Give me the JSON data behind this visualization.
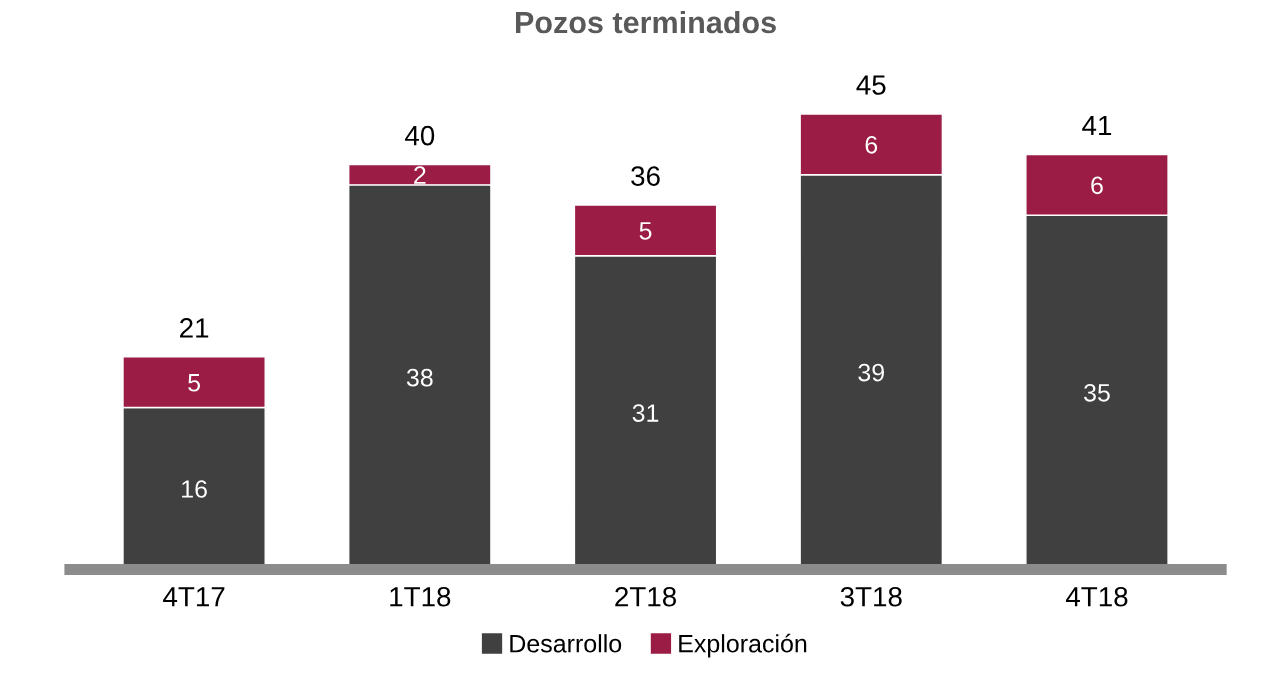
{
  "chart_data": {
    "type": "bar",
    "title": "Pozos terminados",
    "stacked": true,
    "data_labels": true,
    "legend": "bottom",
    "categories": [
      "4T17",
      "1T18",
      "2T18",
      "3T18",
      "4T18"
    ],
    "series": [
      {
        "name": "Desarrollo",
        "color": "#404040",
        "values": [
          16,
          38,
          31,
          39,
          35
        ]
      },
      {
        "name": "Exploración",
        "color": "#9b1c45",
        "values": [
          5,
          2,
          5,
          6,
          6
        ]
      }
    ],
    "totals": [
      "21",
      "40",
      "36",
      "45",
      "41"
    ]
  }
}
